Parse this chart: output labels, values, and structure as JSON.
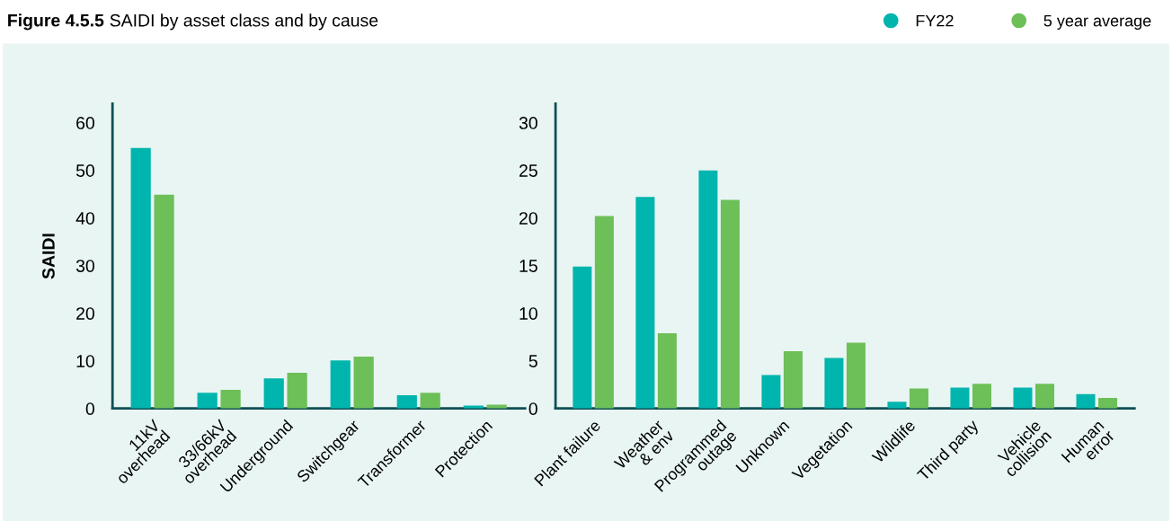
{
  "chart_data": [
    {
      "type": "bar",
      "title": "Figure 4.5.5 SAIDI by asset class and by cause",
      "ylabel": "SAIDI",
      "categories": [
        "11kV\noverhead",
        "33/66kV\noverhead",
        "Underground",
        "Switchgear",
        "Transformer",
        "Protection"
      ],
      "series": [
        {
          "name": "FY22",
          "color": "#00b5ad",
          "values": [
            54.7,
            3.3,
            6.3,
            10.1,
            2.8,
            0.6
          ]
        },
        {
          "name": "5 year average",
          "color": "#6dbf58",
          "values": [
            44.9,
            3.9,
            7.5,
            10.9,
            3.3,
            0.8
          ]
        }
      ],
      "ylim": [
        0,
        64
      ],
      "yticks": [
        0,
        10,
        20,
        30,
        40,
        50,
        60
      ],
      "grid": false,
      "legend": "top right"
    },
    {
      "type": "bar",
      "categories": [
        "Plant failure",
        "Weather\n& env",
        "Programmed\noutage",
        "Unknown",
        "Vegetation",
        "Wildlife",
        "Third party",
        "Vehicle\ncollision",
        "Human\nerror"
      ],
      "series": [
        {
          "color": "#00b5ad",
          "values": [
            14.9,
            22.2,
            25.0,
            3.5,
            5.3,
            0.7,
            2.2,
            2.2,
            1.5
          ]
        },
        {
          "color": "#6dbf58",
          "values": [
            20.2,
            7.9,
            21.9,
            6.0,
            6.9,
            2.1,
            2.6,
            2.6,
            1.1
          ]
        }
      ],
      "ylim": [
        0,
        32
      ],
      "yticks": [
        0,
        5,
        10,
        15,
        20,
        25,
        30
      ],
      "grid": false
    }
  ]
}
